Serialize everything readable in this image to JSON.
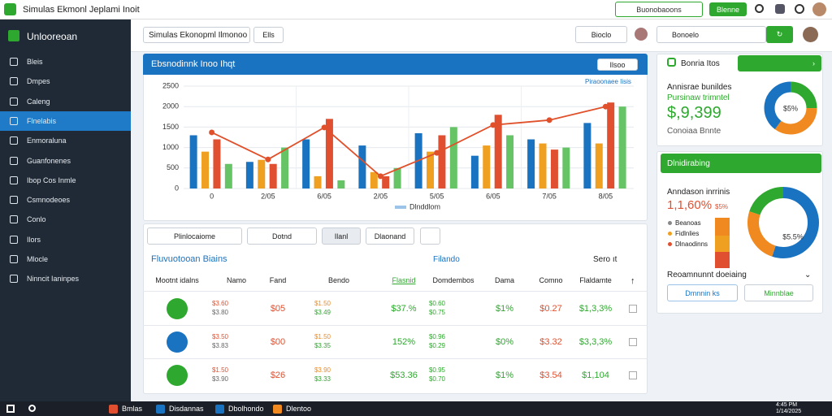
{
  "window": {
    "title": "Simulas Ekmonl Jeplami Inoit",
    "search": "Buonobaoons",
    "badge": "Blenne"
  },
  "header": {
    "search": "Simulas Ekonopml Ilmonoo",
    "filter": "Ells",
    "user": "Bioclo",
    "search2": "Bonoelo"
  },
  "sidebar": {
    "brand": "Unlooreoan",
    "items": [
      "Bleis",
      "Dmpes",
      "Caleng",
      "Flnelabis",
      "Enmoraluna",
      "Guanfonenes",
      "Ibop Cos Inmle",
      "Csmnodeoes",
      "Conlo",
      "Ilors",
      "Mlocle",
      "Ninncit Ianinpes"
    ]
  },
  "chart_data": {
    "type": "bar",
    "title": "Ebsnodinnk Inoo Ihqt",
    "button": "Ilsoo",
    "annotation": "Piraoonaee Iisis",
    "categories": [
      "0",
      "2/05",
      "6/05",
      "2/05",
      "5/05",
      "6/05",
      "7/05",
      "8/05"
    ],
    "series": [
      {
        "color": "#1a73c0",
        "values": [
          1300,
          650,
          1200,
          1050,
          1350,
          800,
          1200,
          1600
        ]
      },
      {
        "color": "#f0a020",
        "values": [
          900,
          700,
          300,
          400,
          900,
          1050,
          1100,
          1100
        ]
      },
      {
        "color": "#e05030",
        "values": [
          1200,
          600,
          1700,
          300,
          1300,
          1800,
          950,
          2100
        ]
      },
      {
        "color": "#66c466",
        "values": [
          600,
          1000,
          200,
          500,
          1500,
          1300,
          1000,
          2000
        ]
      },
      {
        "name": "Dlnddlom",
        "type": "line",
        "color": "#e0502a",
        "values": [
          1370,
          710,
          1490,
          300,
          870,
          1550,
          1670,
          2000
        ]
      }
    ],
    "ylim": [
      0,
      2500
    ],
    "yticks": [
      0,
      500,
      1000,
      1500,
      2000,
      2500
    ],
    "grid": true
  },
  "toolbar": [
    "Plinlocaiome",
    "Dotnd",
    "Ilanl",
    "Dlaonand"
  ],
  "table": {
    "title": "Fluvuotooan Biains",
    "filter": "Filando",
    "sort": "Sero ıt",
    "columns": [
      "Mootnt idalns",
      "Namo",
      "Fand",
      "Bendo",
      "Flasnid",
      "Domdembos",
      "Dama",
      "Comno",
      "Flaldamte"
    ],
    "rows": [
      [
        [
          "$3.60",
          "$3.80"
        ],
        "$05",
        [
          "$1.50",
          "$3.49"
        ],
        "$37.%",
        [
          "$0.60",
          "$0.75"
        ],
        "$1%",
        "$0.27",
        "$1,3,3%"
      ],
      [
        [
          "$3.50",
          "$3.83"
        ],
        "$00",
        [
          "$1.50",
          "$3.35"
        ],
        "152%",
        [
          "$0.96",
          "$0.29"
        ],
        "$0%",
        "$3.32",
        "$3,3,3%"
      ],
      [
        [
          "$1.50",
          "$3.90"
        ],
        "$26",
        [
          "$3.90",
          "$3.33"
        ],
        "$53.36",
        [
          "$0.95",
          "$0.70"
        ],
        "$1%",
        "$3.54",
        "$1,104"
      ]
    ]
  },
  "summary": {
    "title": "Bonria Itos",
    "label": "Annisrae bunildes",
    "sublabel": "Pursinaw trimntel",
    "value": "$,9,399",
    "footer": "Conoiaa Bnnte",
    "donut": {
      "values": [
        25,
        35,
        40
      ],
      "colors": [
        "#2ea82e",
        "#f08a20",
        "#1a73c0"
      ],
      "label": "$5%"
    }
  },
  "distribution": {
    "title": "Dlnidirabing",
    "label": "Anndason inrrinis",
    "value": "1,1,60%",
    "badge": "$5%",
    "legend": [
      "Beanoas",
      "Fidlnlies",
      "Dlnaodinns"
    ],
    "legend_colors": [
      "#888888",
      "#f0a020",
      "#e05030"
    ],
    "donut": {
      "values": [
        55,
        25,
        20
      ],
      "colors": [
        "#1a73c0",
        "#f08a20",
        "#2ea82e"
      ],
      "label": "$5.5%"
    },
    "footer": "Reoamnunnt doeiaing",
    "buttons": [
      "Dmnnin ks",
      "Minnblae"
    ]
  },
  "taskbar": {
    "items": [
      "Bmlas",
      "Disdannas",
      "Dbolhondo",
      "Dlentoo"
    ],
    "clock": [
      "4:45 PM",
      "1/14/2025"
    ]
  }
}
